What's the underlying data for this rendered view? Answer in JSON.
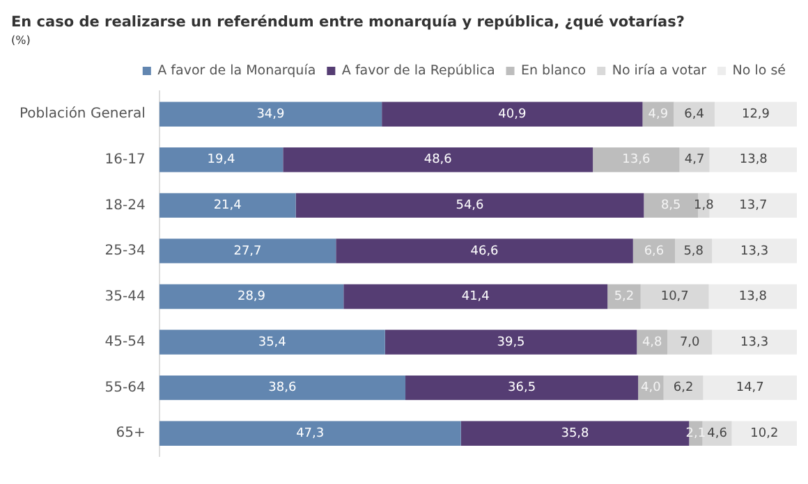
{
  "chart_data": {
    "type": "bar",
    "orientation": "horizontal",
    "stacked": true,
    "title": "En caso de realizarse un referéndum entre monarquía y república, ¿qué votarías?",
    "subtitle": "(%)",
    "categories": [
      "Población General",
      "16-17",
      "18-24",
      "25-34",
      "35-44",
      "45-54",
      "55-64",
      "65+"
    ],
    "xlim": [
      0,
      100
    ],
    "tick_labels": "y",
    "grid": false,
    "legend": "top right",
    "series": [
      {
        "name": "A favor de la Monarquía",
        "color": "#6286b0",
        "values": [
          34.9,
          19.4,
          21.4,
          27.7,
          28.9,
          35.4,
          38.6,
          47.3
        ],
        "value_labels": [
          "34,9",
          "19,4",
          "21,4",
          "27,7",
          "28,9",
          "35,4",
          "38,6",
          "47,3"
        ]
      },
      {
        "name": "A favor de la República",
        "color": "#553d73",
        "values": [
          40.9,
          48.6,
          54.6,
          46.6,
          41.4,
          39.5,
          36.5,
          35.8
        ],
        "value_labels": [
          "40,9",
          "48,6",
          "54,6",
          "46,6",
          "41,4",
          "39,5",
          "36,5",
          "35,8"
        ]
      },
      {
        "name": "En blanco",
        "color": "#bdbdbd",
        "values": [
          4.9,
          13.6,
          8.5,
          6.6,
          5.2,
          4.8,
          4.0,
          2.1
        ],
        "value_labels": [
          "4,9",
          "13,6",
          "8,5",
          "6,6",
          "5,2",
          "4,8",
          "4,0",
          "2,1"
        ]
      },
      {
        "name": "No iría a votar",
        "color": "#d9d9d9",
        "values": [
          6.4,
          4.7,
          1.8,
          5.8,
          10.7,
          7.0,
          6.2,
          4.6
        ],
        "value_labels": [
          "6,4",
          "4,7",
          "1,8",
          "5,8",
          "10,7",
          "7,0",
          "6,2",
          "4,6"
        ]
      },
      {
        "name": "No lo sé",
        "color": "#ededed",
        "values": [
          12.9,
          13.8,
          13.7,
          13.3,
          13.8,
          13.3,
          14.7,
          10.2
        ],
        "value_labels": [
          "12,9",
          "13,8",
          "13,7",
          "13,3",
          "13,8",
          "13,3",
          "14,7",
          "10,2"
        ]
      }
    ]
  }
}
